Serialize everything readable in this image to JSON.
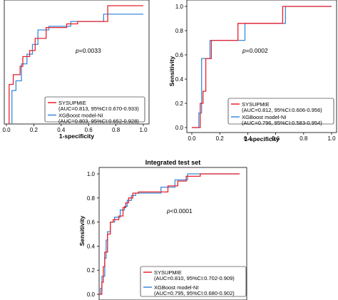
{
  "chart_data": [
    {
      "type": "line",
      "panel": "top-left",
      "title": "",
      "xlabel": "1-specificity",
      "ylabel": "",
      "xlim": [
        0,
        1
      ],
      "ylim": [
        0,
        1
      ],
      "xticks": [
        "0.0",
        "0.2",
        "0.4",
        "0.6",
        "0.8",
        "1.0"
      ],
      "yticks": [],
      "annotation": "p=0.0033",
      "grid": false,
      "legend_position": "bottom-right",
      "series": [
        {
          "name": "SYSUPMIE",
          "sublabel": "(AUC=0.813, 95%CI:0.670-0.933)",
          "color": "#e8212b",
          "x": [
            0,
            0.02,
            0.02,
            0.05,
            0.05,
            0.1,
            0.1,
            0.12,
            0.12,
            0.17,
            0.17,
            0.21,
            0.21,
            0.29,
            0.29,
            0.44,
            0.44,
            0.52,
            0.52,
            0.74,
            0.74,
            1.0
          ],
          "y": [
            0,
            0,
            0.35,
            0.35,
            0.43,
            0.43,
            0.5,
            0.5,
            0.58,
            0.58,
            0.63,
            0.63,
            0.73,
            0.73,
            0.82,
            0.82,
            0.85,
            0.85,
            0.87,
            0.87,
            1.0,
            1.0
          ]
        },
        {
          "name": "XGBoost model-NI",
          "sublabel": "(AUC=0.803, 95%CI:0.652-0.928)",
          "color": "#3a8ad8",
          "x": [
            0,
            0.04,
            0.04,
            0.07,
            0.07,
            0.11,
            0.11,
            0.15,
            0.15,
            0.19,
            0.19,
            0.23,
            0.23,
            0.31,
            0.31,
            0.47,
            0.47,
            0.71,
            0.71,
            1.0
          ],
          "y": [
            0,
            0,
            0.3,
            0.3,
            0.38,
            0.38,
            0.52,
            0.52,
            0.6,
            0.6,
            0.68,
            0.68,
            0.8,
            0.8,
            0.83,
            0.83,
            0.87,
            0.87,
            0.93,
            0.93
          ]
        }
      ]
    },
    {
      "type": "line",
      "panel": "top-right",
      "title": "",
      "xlabel": "1-specificity",
      "ylabel": "Sensitivity",
      "xlim": [
        0,
        1
      ],
      "ylim": [
        0,
        1
      ],
      "xticks": [
        "0.0",
        "0.2",
        "0.4",
        "0.6",
        "0.8",
        "1.0"
      ],
      "yticks": [
        "0.0",
        "0.2",
        "0.4",
        "0.6",
        "0.8",
        "1.0"
      ],
      "annotation": "p=0.0002",
      "grid": false,
      "legend_position": "bottom-right",
      "series": [
        {
          "name": "SYSUPMIE",
          "sublabel": "(AUC=0.812, 95%CI:0.606-0.956)",
          "color": "#e8212b",
          "x": [
            0,
            0.06,
            0.06,
            0.08,
            0.08,
            0.1,
            0.1,
            0.14,
            0.14,
            0.33,
            0.33,
            0.65,
            0.65,
            1.0
          ],
          "y": [
            0,
            0,
            0.2,
            0.2,
            0.3,
            0.3,
            0.57,
            0.57,
            0.72,
            0.72,
            0.86,
            0.86,
            1.0,
            1.0
          ]
        },
        {
          "name": "XGBoost model-NI",
          "sublabel": "(AUC=0.796, 95%CI:0.583-0.954)",
          "color": "#3a8ad8",
          "x": [
            0,
            0.05,
            0.05,
            0.07,
            0.07,
            0.13,
            0.13,
            0.38,
            0.38,
            0.67,
            0.67,
            1.0
          ],
          "y": [
            0,
            0,
            0.12,
            0.12,
            0.57,
            0.57,
            0.72,
            0.72,
            0.86,
            0.86,
            1.0,
            1.0
          ]
        }
      ]
    },
    {
      "type": "line",
      "panel": "bottom",
      "title": "Integrated test set",
      "xlabel": "",
      "ylabel": "Sensitivity",
      "xlim": [
        0,
        1
      ],
      "ylim": [
        0,
        1
      ],
      "xticks": [],
      "yticks": [
        "0.0",
        "0.2",
        "0.4",
        "0.6",
        "0.8",
        "1.0"
      ],
      "annotation": "p<0.0001",
      "grid": false,
      "legend_position": "bottom-right",
      "series": [
        {
          "name": "SYSUPMIE",
          "sublabel": "(AUC=0.810, 95%CI:0.702-0.909)",
          "color": "#e8212b",
          "x": [
            0,
            0.02,
            0.02,
            0.03,
            0.03,
            0.04,
            0.04,
            0.06,
            0.06,
            0.08,
            0.08,
            0.1,
            0.1,
            0.14,
            0.14,
            0.17,
            0.17,
            0.19,
            0.19,
            0.21,
            0.21,
            0.24,
            0.24,
            0.28,
            0.28,
            0.49,
            0.49,
            0.56,
            0.56,
            0.62,
            0.62,
            0.72,
            0.72,
            1.0
          ],
          "y": [
            0,
            0,
            0.1,
            0.1,
            0.23,
            0.23,
            0.35,
            0.35,
            0.5,
            0.5,
            0.6,
            0.6,
            0.62,
            0.62,
            0.65,
            0.65,
            0.72,
            0.72,
            0.76,
            0.76,
            0.8,
            0.8,
            0.84,
            0.84,
            0.85,
            0.85,
            0.9,
            0.9,
            0.94,
            0.94,
            0.98,
            0.98,
            1.0,
            1.0
          ]
        },
        {
          "name": "XGBoost model-NI",
          "sublabel": "(AUC=0.795, 95%CI:0.680-0.902)",
          "color": "#3a8ad8",
          "x": [
            0,
            0.01,
            0.01,
            0.02,
            0.02,
            0.04,
            0.04,
            0.05,
            0.05,
            0.06,
            0.06,
            0.08,
            0.08,
            0.11,
            0.11,
            0.15,
            0.15,
            0.18,
            0.18,
            0.2,
            0.2,
            0.23,
            0.23,
            0.26,
            0.26,
            0.44,
            0.44,
            0.54,
            0.54,
            0.63,
            0.63,
            0.74,
            0.74,
            1.0
          ],
          "y": [
            0,
            0,
            0.05,
            0.05,
            0.15,
            0.15,
            0.3,
            0.3,
            0.45,
            0.45,
            0.52,
            0.52,
            0.6,
            0.6,
            0.64,
            0.64,
            0.7,
            0.7,
            0.73,
            0.73,
            0.78,
            0.78,
            0.82,
            0.82,
            0.84,
            0.84,
            0.89,
            0.89,
            0.95,
            0.95,
            1.0,
            1.0,
            1.0,
            1.0
          ]
        }
      ]
    }
  ]
}
